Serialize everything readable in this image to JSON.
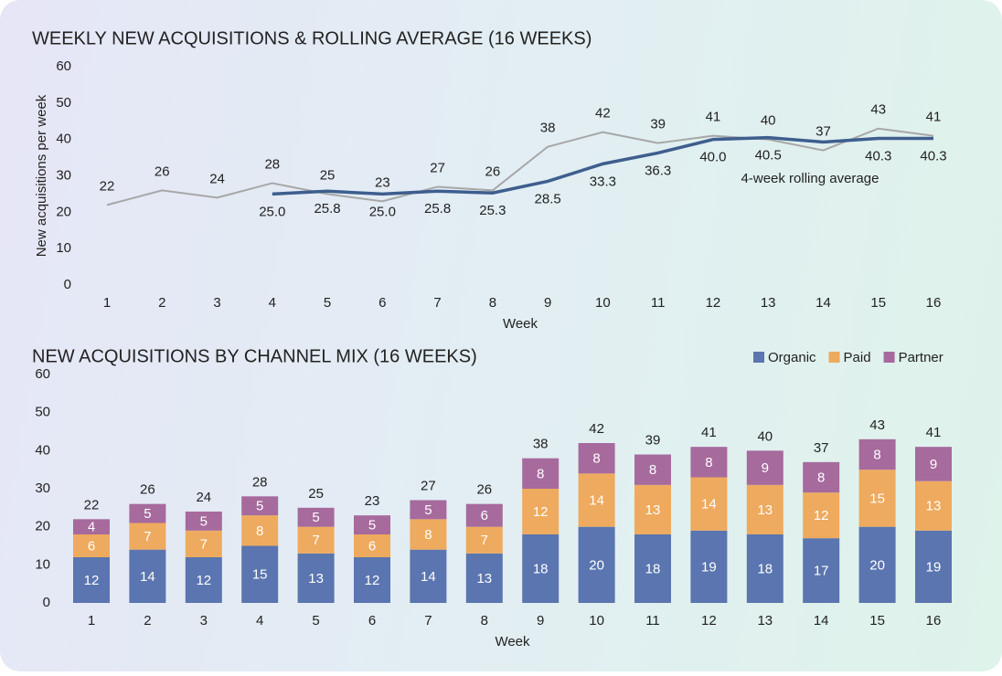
{
  "chart_data": [
    {
      "type": "line",
      "title": "WEEKLY NEW ACQUISITIONS & ROLLING AVERAGE (16 WEEKS)",
      "y_label": "New acquisitions per week",
      "x_label": "Week",
      "categories": [
        "1",
        "2",
        "3",
        "4",
        "5",
        "6",
        "7",
        "8",
        "9",
        "10",
        "11",
        "12",
        "13",
        "14",
        "15",
        "16"
      ],
      "series": [
        {
          "color": "#a7a7a7",
          "values": [
            22,
            26,
            24,
            28,
            25,
            23,
            27,
            26,
            38,
            42,
            39,
            41,
            40,
            37,
            43,
            41
          ]
        },
        {
          "name": "4-week rolling average",
          "color": "#3e5e8e",
          "values": [
            null,
            null,
            null,
            25.0,
            25.8,
            25.0,
            25.8,
            25.3,
            28.5,
            33.3,
            36.3,
            40.0,
            40.5,
            39.3,
            40.3,
            40.3
          ],
          "value_labels": [
            null,
            null,
            null,
            "25.0",
            "25.8",
            "25.0",
            "25.8",
            "25.3",
            "28.5",
            "33.3",
            "36.3",
            "40.0",
            "40.5",
            null,
            "40.3",
            "40.3"
          ]
        }
      ],
      "ylim": [
        0,
        60
      ],
      "yticks": [
        0,
        10,
        20,
        30,
        40,
        50,
        60
      ],
      "grid": false
    },
    {
      "type": "stacked_bar",
      "title": "NEW ACQUISITIONS BY CHANNEL MIX (16 WEEKS)",
      "x_label": "Week",
      "categories": [
        "1",
        "2",
        "3",
        "4",
        "5",
        "6",
        "7",
        "8",
        "9",
        "10",
        "11",
        "12",
        "13",
        "14",
        "15",
        "16"
      ],
      "series": [
        {
          "name": "Organic",
          "color": "#5a75af",
          "values": [
            12,
            14,
            12,
            15,
            13,
            12,
            14,
            13,
            18,
            20,
            18,
            19,
            18,
            17,
            20,
            19
          ]
        },
        {
          "name": "Paid",
          "color": "#eeaa5e",
          "values": [
            6,
            7,
            7,
            8,
            7,
            6,
            8,
            7,
            12,
            14,
            13,
            14,
            13,
            12,
            15,
            13
          ]
        },
        {
          "name": "Partner",
          "color": "#a66a9d",
          "values": [
            4,
            5,
            5,
            5,
            5,
            5,
            5,
            6,
            8,
            8,
            8,
            8,
            9,
            8,
            8,
            9
          ]
        }
      ],
      "totals": [
        22,
        26,
        24,
        28,
        25,
        23,
        27,
        26,
        38,
        42,
        39,
        41,
        40,
        37,
        43,
        41
      ],
      "ylim": [
        0,
        60
      ],
      "yticks": [
        0,
        10,
        20,
        30,
        40,
        50,
        60
      ],
      "grid": false,
      "legend": "top-right"
    }
  ]
}
